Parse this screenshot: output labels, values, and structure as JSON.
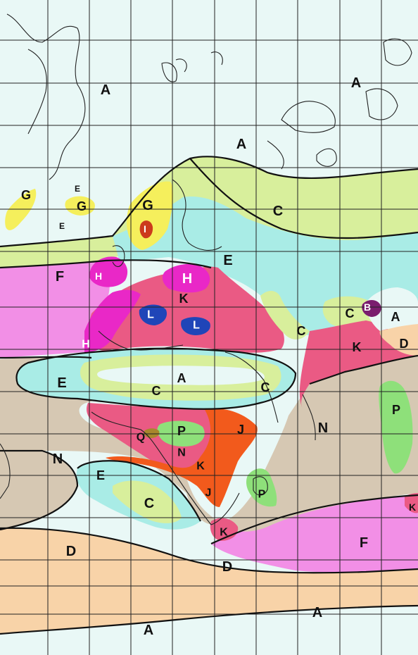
{
  "map": {
    "type": "paleoclimate zone map",
    "colors": {
      "A": "#e9f8f6",
      "B": "#7a1d6e",
      "C": "#d8ef9c",
      "D": "#f8d3a8",
      "E": "#a9ece6",
      "F": "#f28fe6",
      "G": "#f5ef5c",
      "H": "#e928c7",
      "I": "#cc3a1c",
      "J": "#f25a1c",
      "K": "#ea5a84",
      "L": "#1f45b8",
      "N": "#d6c8b3",
      "P": "#8ee07a",
      "Q": "#a8872c"
    },
    "labels": [
      {
        "id": "A-1",
        "text": "A",
        "zone": "A"
      },
      {
        "id": "A-2",
        "text": "A",
        "zone": "A"
      },
      {
        "id": "A-3",
        "text": "A",
        "zone": "A"
      },
      {
        "id": "A-4",
        "text": "A",
        "zone": "A"
      },
      {
        "id": "A-5",
        "text": "A",
        "zone": "A"
      },
      {
        "id": "A-6",
        "text": "A",
        "zone": "A"
      },
      {
        "id": "A-7",
        "text": "A",
        "zone": "A"
      },
      {
        "id": "B-1",
        "text": "B",
        "zone": "B"
      },
      {
        "id": "C-1",
        "text": "C",
        "zone": "C"
      },
      {
        "id": "C-2",
        "text": "C",
        "zone": "C"
      },
      {
        "id": "C-3",
        "text": "C",
        "zone": "C"
      },
      {
        "id": "C-4",
        "text": "C",
        "zone": "C"
      },
      {
        "id": "C-5",
        "text": "C",
        "zone": "C"
      },
      {
        "id": "C-6",
        "text": "C",
        "zone": "C"
      },
      {
        "id": "D-1",
        "text": "D",
        "zone": "D"
      },
      {
        "id": "D-2",
        "text": "D",
        "zone": "D"
      },
      {
        "id": "D-3",
        "text": "D",
        "zone": "D"
      },
      {
        "id": "E-1",
        "text": "E",
        "zone": "E"
      },
      {
        "id": "E-2",
        "text": "E",
        "zone": "E"
      },
      {
        "id": "E-3",
        "text": "E",
        "zone": "E"
      },
      {
        "id": "E-4",
        "text": "E",
        "zone": "E"
      },
      {
        "id": "E-5",
        "text": "E",
        "zone": "E"
      },
      {
        "id": "F-1",
        "text": "F",
        "zone": "F"
      },
      {
        "id": "F-2",
        "text": "F",
        "zone": "F"
      },
      {
        "id": "G-1",
        "text": "G",
        "zone": "G"
      },
      {
        "id": "G-2",
        "text": "G",
        "zone": "G"
      },
      {
        "id": "G-3",
        "text": "G",
        "zone": "G"
      },
      {
        "id": "H-1",
        "text": "H",
        "zone": "H"
      },
      {
        "id": "H-2",
        "text": "H",
        "zone": "H"
      },
      {
        "id": "H-3",
        "text": "H",
        "zone": "H"
      },
      {
        "id": "I-1",
        "text": "I",
        "zone": "I"
      },
      {
        "id": "J-1",
        "text": "J",
        "zone": "J"
      },
      {
        "id": "J-2",
        "text": "J",
        "zone": "J"
      },
      {
        "id": "K-1",
        "text": "K",
        "zone": "K"
      },
      {
        "id": "K-2",
        "text": "K",
        "zone": "K"
      },
      {
        "id": "K-3",
        "text": "K",
        "zone": "K"
      },
      {
        "id": "K-4",
        "text": "K",
        "zone": "K"
      },
      {
        "id": "K-5",
        "text": "K",
        "zone": "K"
      },
      {
        "id": "L-1",
        "text": "L",
        "zone": "L"
      },
      {
        "id": "L-2",
        "text": "L",
        "zone": "L"
      },
      {
        "id": "N-1",
        "text": "N",
        "zone": "N"
      },
      {
        "id": "N-2",
        "text": "N",
        "zone": "N"
      },
      {
        "id": "N-3",
        "text": "N",
        "zone": "N"
      },
      {
        "id": "P-1",
        "text": "P",
        "zone": "P"
      },
      {
        "id": "P-2",
        "text": "P",
        "zone": "P"
      },
      {
        "id": "P-3",
        "text": "P",
        "zone": "P"
      },
      {
        "id": "Q-1",
        "text": "Q",
        "zone": "Q"
      }
    ]
  }
}
